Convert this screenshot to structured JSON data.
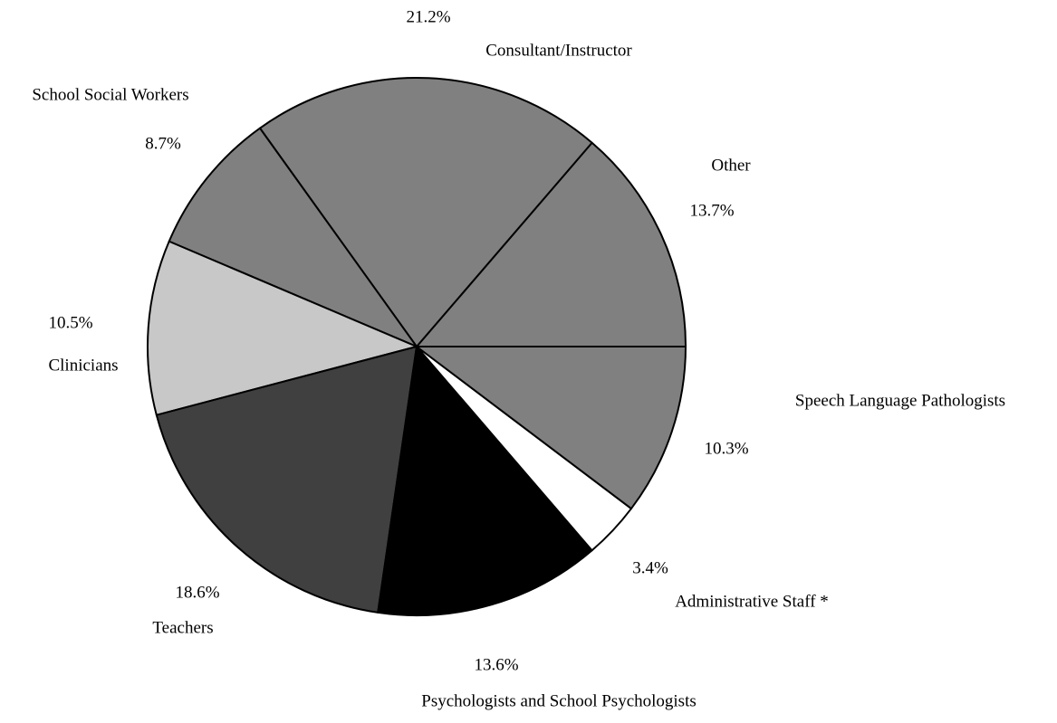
{
  "chart_data": {
    "type": "pie",
    "categories": [
      "Other",
      "Consultant/Instructor",
      "School Social Workers",
      "Clinicians",
      "Teachers",
      "Psychologists and School Psychologists",
      "Administrative Staff *",
      "Speech Language Pathologists"
    ],
    "values": [
      13.7,
      21.2,
      8.7,
      10.5,
      18.6,
      13.6,
      3.4,
      10.3
    ],
    "value_labels": [
      "13.7%",
      "21.2%",
      "8.7%",
      "10.5%",
      "18.6%",
      "13.6%",
      "3.4%",
      "10.3%"
    ],
    "colors": [
      "#808080",
      "#808080",
      "#808080",
      "#c8c8c8",
      "#404040",
      "#000000",
      "#ffffff",
      "#808080"
    ]
  }
}
